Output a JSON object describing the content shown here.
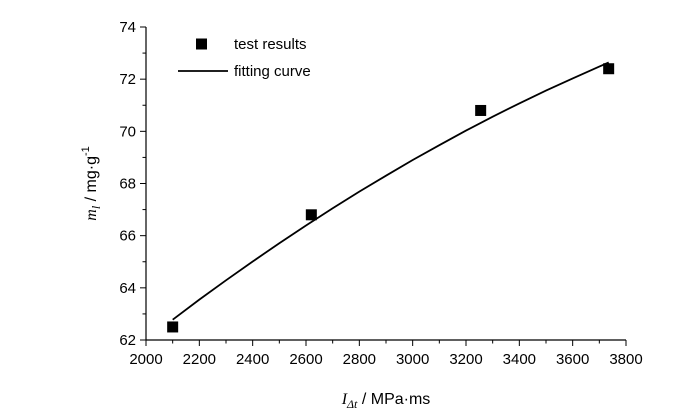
{
  "chart_data": {
    "type": "scatter",
    "title": "",
    "xlabel": {
      "symbol": "I",
      "subscript": "Δt",
      "unit": "MPa·ms"
    },
    "ylabel": {
      "symbol": "m",
      "subscript": "l",
      "unit": "mg·g",
      "unit_exponent": "-1"
    },
    "xlim": [
      2000,
      3800
    ],
    "ylim": [
      62,
      74
    ],
    "x_ticks": [
      2000,
      2200,
      2400,
      2600,
      2800,
      3000,
      3200,
      3400,
      3600,
      3800
    ],
    "y_ticks": [
      62,
      64,
      66,
      68,
      70,
      72,
      74
    ],
    "grid": false,
    "legend_position": "top-left",
    "series": [
      {
        "name": "test results",
        "kind": "points",
        "marker": "square",
        "color": "#000000",
        "x": [
          2100,
          2620,
          3255,
          3735
        ],
        "y": [
          62.5,
          66.8,
          70.8,
          72.4
        ]
      },
      {
        "name": "fitting curve",
        "kind": "line",
        "color": "#000000",
        "x": [
          2100,
          2200,
          2300,
          2400,
          2500,
          2600,
          2700,
          2800,
          2900,
          3000,
          3100,
          3200,
          3300,
          3400,
          3500,
          3600,
          3700,
          3735
        ],
        "y": [
          62.78,
          63.55,
          64.29,
          65.01,
          65.71,
          66.39,
          67.05,
          67.69,
          68.3,
          68.9,
          69.47,
          70.03,
          70.56,
          71.07,
          71.56,
          72.03,
          72.48,
          72.64
        ]
      }
    ]
  }
}
